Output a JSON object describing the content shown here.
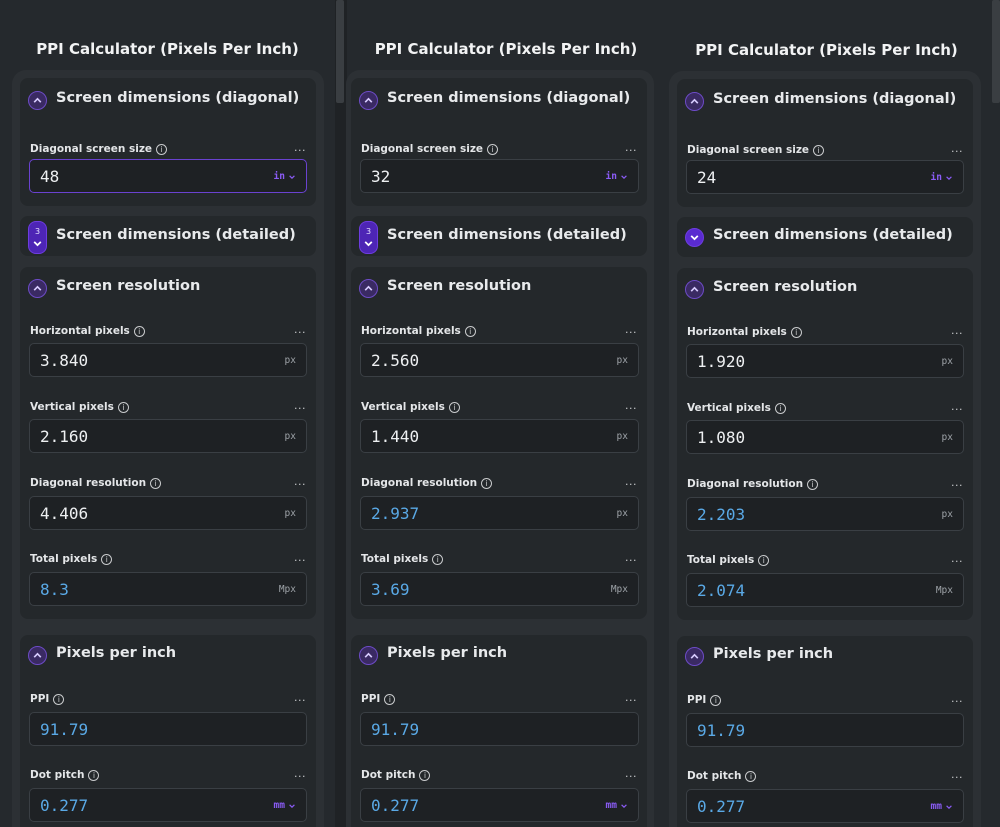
{
  "app": {
    "title": "PPI Calculator (Pixels Per Inch)"
  },
  "colors": {
    "accent": "#6a42d0",
    "computed_value": "#5aa9e6",
    "background": "#25292d",
    "card": "#24282b"
  },
  "icons": [
    "chevron-up-icon",
    "chevron-down-icon",
    "info-icon",
    "more-icon"
  ],
  "calculators": [
    {
      "title": "PPI Calculator (Pixels Per Inch)",
      "sections": {
        "diagonal": "Screen dimensions (diagonal)",
        "detailed": "Screen dimensions (detailed)",
        "detailed_badge": "3",
        "resolution": "Screen resolution",
        "ppi": "Pixels per inch"
      },
      "fields": {
        "diagonal": {
          "label": "Diagonal screen size",
          "value": "48",
          "unit": "in"
        },
        "hpx": {
          "label": "Horizontal pixels",
          "value": "3.840",
          "unit": "px"
        },
        "vpx": {
          "label": "Vertical pixels",
          "value": "2.160",
          "unit": "px"
        },
        "diagres": {
          "label": "Diagonal resolution",
          "value": "4.406",
          "unit": "px"
        },
        "total": {
          "label": "Total pixels",
          "value": "8.3",
          "unit": "Mpx"
        },
        "ppi": {
          "label": "PPI",
          "value": "91.79"
        },
        "dotpitch": {
          "label": "Dot pitch",
          "value": "0.277",
          "unit": "mm"
        }
      },
      "more": "..."
    },
    {
      "title": "PPI Calculator (Pixels Per Inch)",
      "sections": {
        "diagonal": "Screen dimensions (diagonal)",
        "detailed": "Screen dimensions (detailed)",
        "detailed_badge": "3",
        "resolution": "Screen resolution",
        "ppi": "Pixels per inch"
      },
      "fields": {
        "diagonal": {
          "label": "Diagonal screen size",
          "value": "32",
          "unit": "in"
        },
        "hpx": {
          "label": "Horizontal pixels",
          "value": "2.560",
          "unit": "px"
        },
        "vpx": {
          "label": "Vertical pixels",
          "value": "1.440",
          "unit": "px"
        },
        "diagres": {
          "label": "Diagonal resolution",
          "value": "2.937",
          "unit": "px"
        },
        "total": {
          "label": "Total pixels",
          "value": "3.69",
          "unit": "Mpx"
        },
        "ppi": {
          "label": "PPI",
          "value": "91.79"
        },
        "dotpitch": {
          "label": "Dot pitch",
          "value": "0.277",
          "unit": "mm"
        }
      },
      "more": "..."
    },
    {
      "title": "PPI Calculator (Pixels Per Inch)",
      "sections": {
        "diagonal": "Screen dimensions (diagonal)",
        "detailed": "Screen dimensions (detailed)",
        "resolution": "Screen resolution",
        "ppi": "Pixels per inch"
      },
      "fields": {
        "diagonal": {
          "label": "Diagonal screen size",
          "value": "24",
          "unit": "in"
        },
        "hpx": {
          "label": "Horizontal pixels",
          "value": "1.920",
          "unit": "px"
        },
        "vpx": {
          "label": "Vertical pixels",
          "value": "1.080",
          "unit": "px"
        },
        "diagres": {
          "label": "Diagonal resolution",
          "value": "2.203",
          "unit": "px"
        },
        "total": {
          "label": "Total pixels",
          "value": "2.074",
          "unit": "Mpx"
        },
        "ppi": {
          "label": "PPI",
          "value": "91.79"
        },
        "dotpitch": {
          "label": "Dot pitch",
          "value": "0.277",
          "unit": "mm"
        }
      },
      "more": "..."
    }
  ]
}
